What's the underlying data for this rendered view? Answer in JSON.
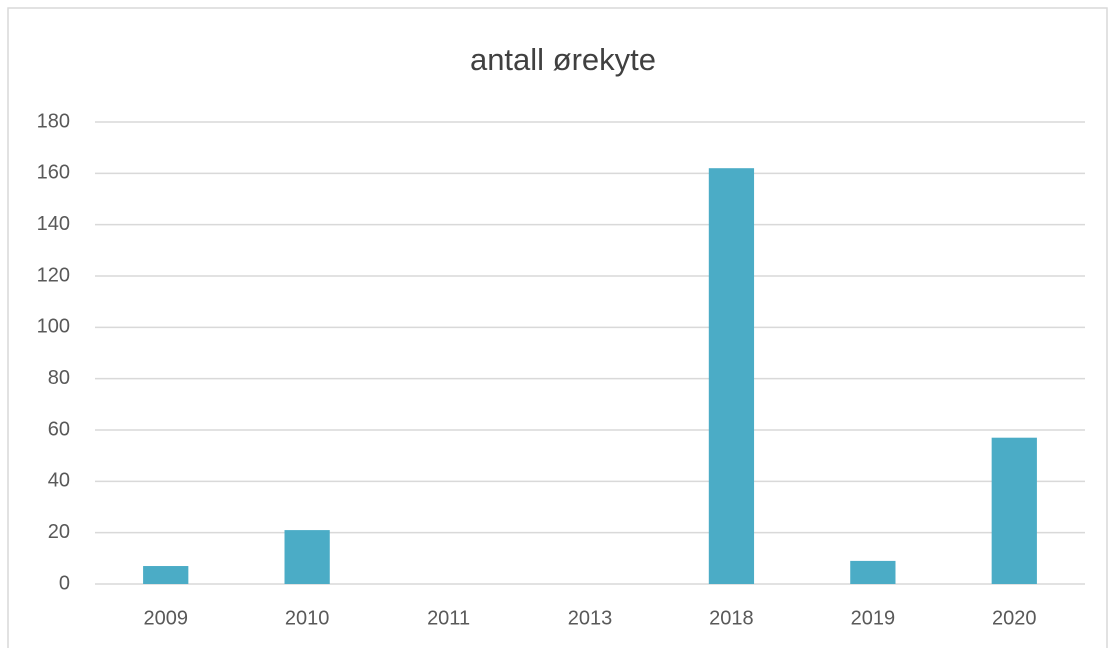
{
  "chart_data": {
    "type": "bar",
    "title": "antall ørekyte",
    "categories": [
      "2009",
      "2010",
      "2011",
      "2013",
      "2018",
      "2019",
      "2020"
    ],
    "values": [
      7,
      21,
      0,
      0,
      162,
      9,
      57
    ],
    "color": "#4bacc6",
    "ylim": [
      0,
      180
    ],
    "yticks": [
      0,
      20,
      40,
      60,
      80,
      100,
      120,
      140,
      160,
      180
    ],
    "grid": true
  }
}
